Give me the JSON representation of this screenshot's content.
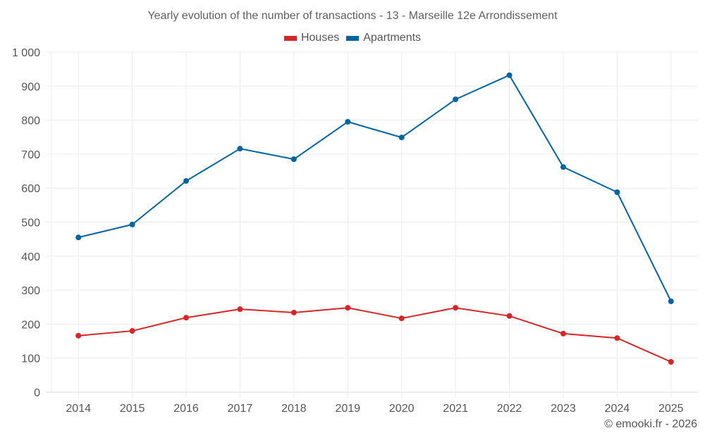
{
  "chart_data": {
    "type": "line",
    "title": "Yearly evolution of the number of transactions - 13 - Marseille 12e Arrondissement",
    "xlabel": "",
    "ylabel": "",
    "categories": [
      "2014",
      "2015",
      "2016",
      "2017",
      "2018",
      "2019",
      "2020",
      "2021",
      "2022",
      "2023",
      "2024",
      "2025"
    ],
    "ylim": [
      0,
      1000
    ],
    "yticks": [
      0,
      100,
      200,
      300,
      400,
      500,
      600,
      700,
      800,
      900,
      1000
    ],
    "ytick_labels": [
      "0",
      "100",
      "200",
      "300",
      "400",
      "500",
      "600",
      "700",
      "800",
      "900",
      "1 000"
    ],
    "grid": true,
    "legend_position": "top-center",
    "series": [
      {
        "name": "Houses",
        "color": "#d62728",
        "values": [
          166,
          180,
          219,
          244,
          234,
          248,
          217,
          248,
          224,
          172,
          159,
          89
        ]
      },
      {
        "name": "Apartments",
        "color": "#03649e",
        "values": [
          455,
          493,
          621,
          716,
          685,
          795,
          749,
          861,
          932,
          662,
          588,
          267
        ]
      }
    ]
  },
  "legend": [
    {
      "label": "Houses",
      "color": "#d62728"
    },
    {
      "label": "Apartments",
      "color": "#03649e"
    }
  ],
  "credit": "© emooki.fr - 2026"
}
